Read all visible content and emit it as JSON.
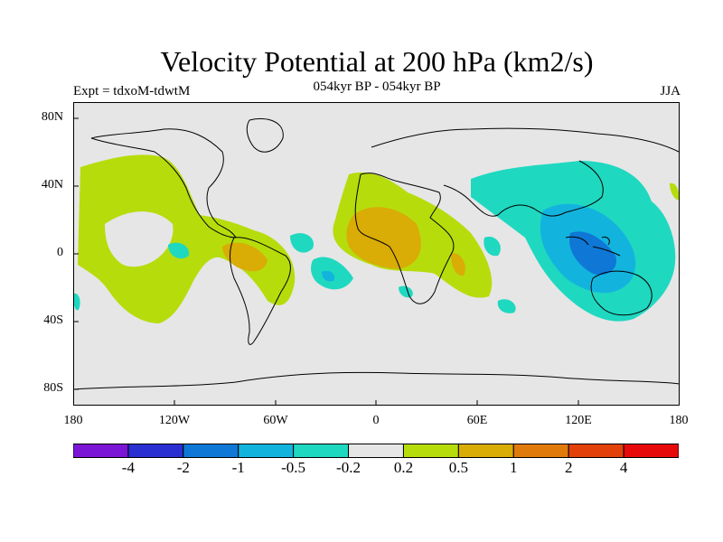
{
  "title": "Velocity Potential at 200 hPa (km2/s)",
  "subtitle": "054kyr BP - 054kyr BP",
  "left_string": "Expt = tdxoM-tdwtM",
  "right_string": "JJA",
  "lat_ticks": [
    "80N",
    "40N",
    "0",
    "40S",
    "80S"
  ],
  "lon_ticks": [
    "180",
    "120W",
    "60W",
    "0",
    "60E",
    "120E",
    "180"
  ],
  "colorbar": {
    "labels": [
      "-4",
      "-2",
      "-1",
      "-0.5",
      "-0.2",
      "0.2",
      "0.5",
      "1",
      "2",
      "4"
    ],
    "colors": [
      "#7b16d6",
      "#2a2fd2",
      "#0f78d6",
      "#12b4de",
      "#1fd8c0",
      "#e6e6e6",
      "#b7dc0c",
      "#d9ac06",
      "#e07a0a",
      "#e2420a",
      "#e60a0a"
    ]
  }
}
